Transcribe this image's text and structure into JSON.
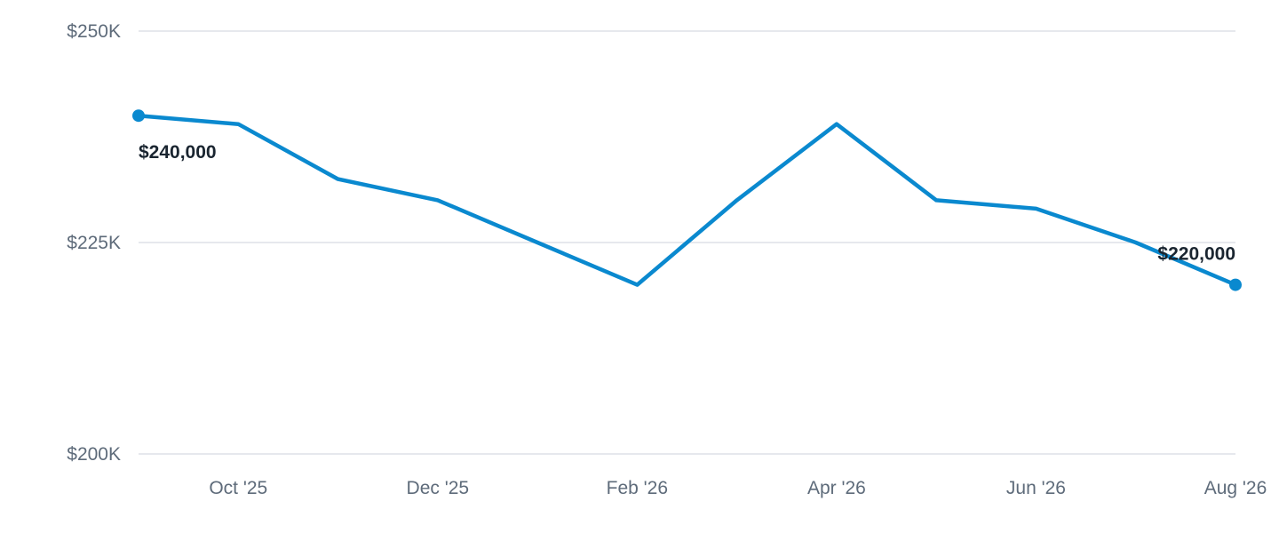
{
  "colors": {
    "series": "#0a89cf",
    "grid": "#dde1e7",
    "tick_text": "#5e6b7a",
    "label_text": "#1a2530"
  },
  "chart_data": {
    "type": "line",
    "title": "",
    "xlabel": "",
    "ylabel": "",
    "grid": true,
    "legend": "none",
    "ylim": [
      200000,
      250000
    ],
    "y_ticks": [
      {
        "value": 250000,
        "label": "$250K"
      },
      {
        "value": 225000,
        "label": "$225K"
      },
      {
        "value": 200000,
        "label": "$200K"
      }
    ],
    "x_ticks": [
      {
        "x": "2025-10",
        "label": "Oct '25"
      },
      {
        "x": "2025-12",
        "label": "Dec '25"
      },
      {
        "x": "2026-02",
        "label": "Feb '26"
      },
      {
        "x": "2026-04",
        "label": "Apr '26"
      },
      {
        "x": "2026-06",
        "label": "Jun '26"
      },
      {
        "x": "2026-08",
        "label": "Aug '26"
      }
    ],
    "series": [
      {
        "x": [
          "2025-09",
          "2025-10",
          "2025-11",
          "2025-12",
          "2026-01",
          "2026-02",
          "2026-03",
          "2026-04",
          "2026-05",
          "2026-06",
          "2026-07",
          "2026-08"
        ],
        "values": [
          240000,
          239000,
          232500,
          230000,
          225000,
          220000,
          230000,
          239000,
          230000,
          229000,
          225000,
          220000
        ]
      }
    ],
    "annotations": [
      {
        "x": "2025-09",
        "value": 240000,
        "label": "$240,000",
        "position": "below"
      },
      {
        "x": "2026-08",
        "value": 220000,
        "label": "$220,000",
        "position": "above"
      }
    ]
  }
}
